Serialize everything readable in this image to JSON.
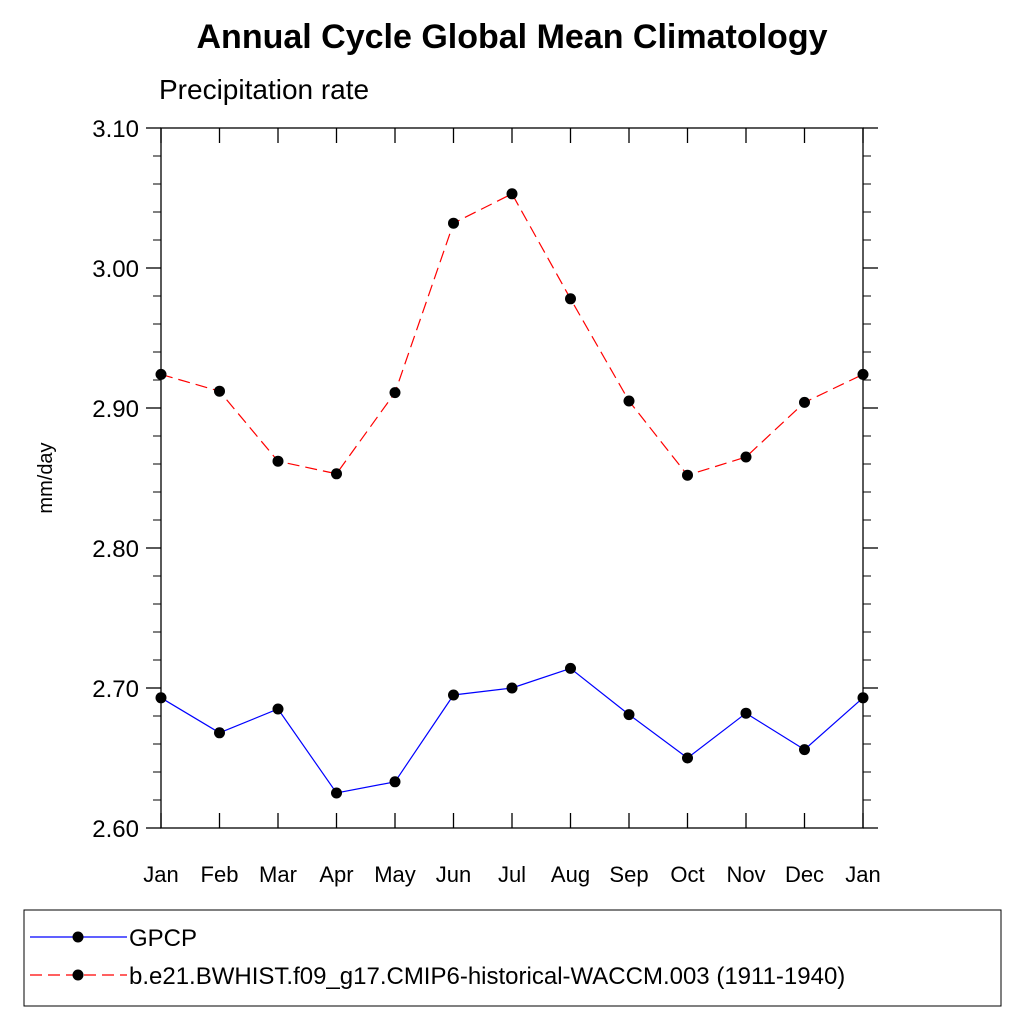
{
  "chart_data": {
    "type": "line",
    "title": "Annual Cycle Global Mean Climatology",
    "subtitle": "Precipitation rate",
    "xlabel": "",
    "ylabel": "mm/day",
    "ylim": [
      2.6,
      3.1
    ],
    "yticks": [
      "2.60",
      "2.70",
      "2.80",
      "2.90",
      "3.00",
      "3.10"
    ],
    "categories": [
      "Jan",
      "Feb",
      "Mar",
      "Apr",
      "May",
      "Jun",
      "Jul",
      "Aug",
      "Sep",
      "Oct",
      "Nov",
      "Dec",
      "Jan"
    ],
    "grid": false,
    "legend_position": "bottom",
    "series": [
      {
        "name": "GPCP",
        "color": "#0000ff",
        "line_style": "solid",
        "marker": "filled-circle",
        "values": [
          2.693,
          2.668,
          2.685,
          2.625,
          2.633,
          2.695,
          2.7,
          2.714,
          2.681,
          2.65,
          2.682,
          2.656,
          2.693
        ]
      },
      {
        "name": "b.e21.BWHIST.f09_g17.CMIP6-historical-WACCM.003 (1911-1940)",
        "color": "#ff0000",
        "line_style": "dashed",
        "marker": "filled-circle",
        "values": [
          2.924,
          2.912,
          2.862,
          2.853,
          2.911,
          3.032,
          3.053,
          2.978,
          2.905,
          2.852,
          2.865,
          2.904,
          2.924
        ]
      }
    ]
  }
}
